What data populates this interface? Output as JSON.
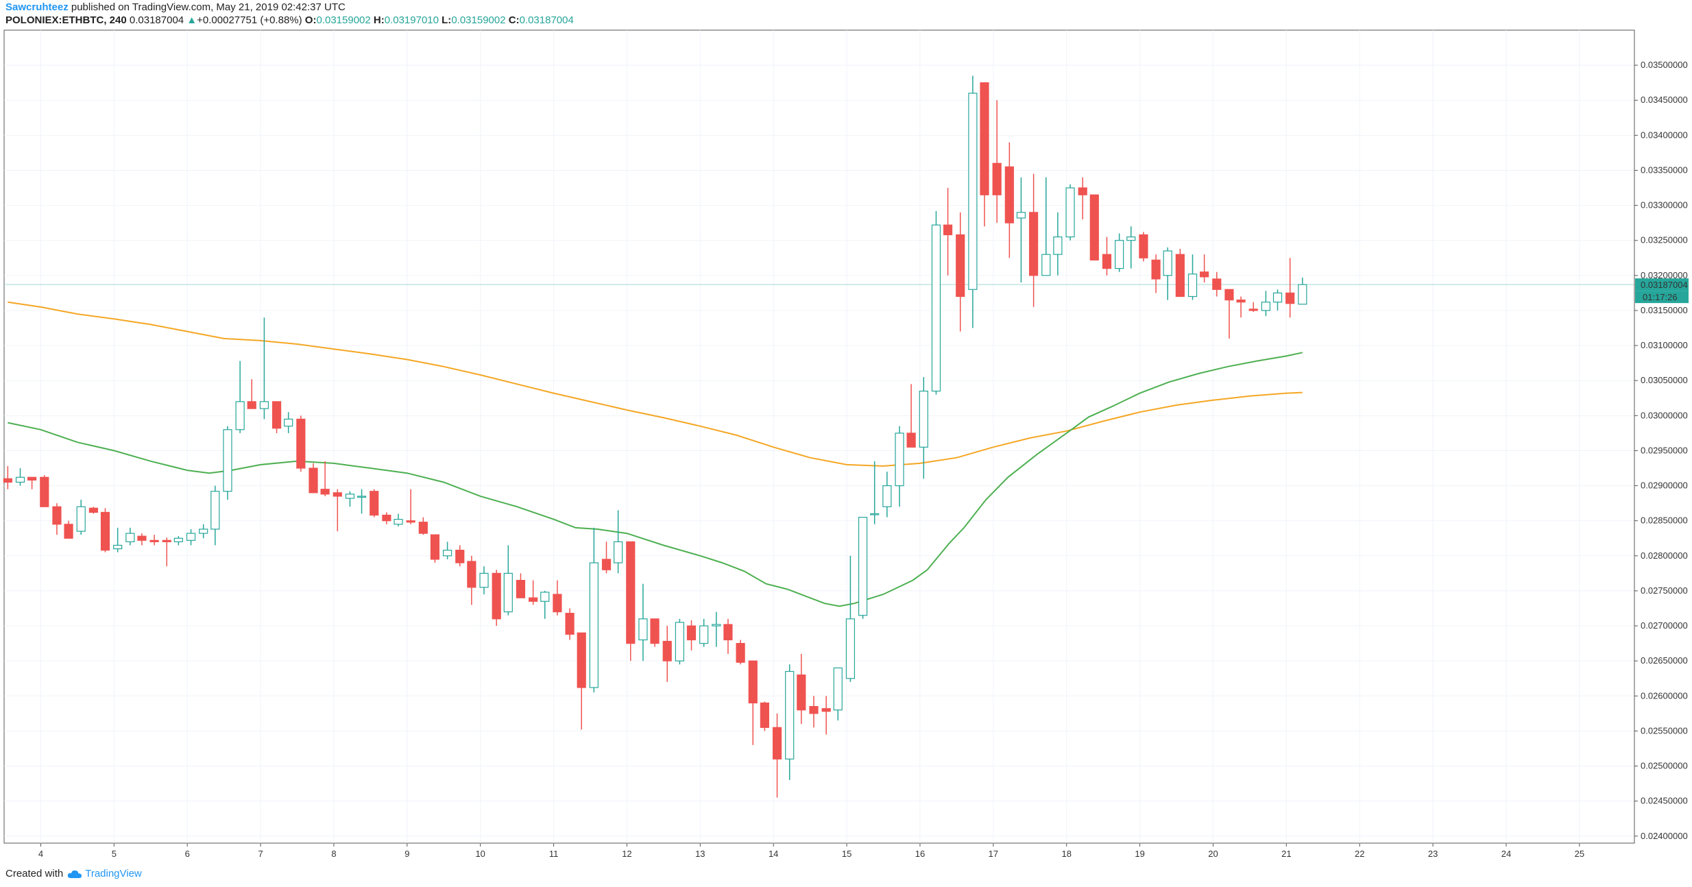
{
  "header": {
    "author": "Sawcruhteez",
    "published": "published on TradingView.com, May 21, 2019 02:42:37 UTC",
    "symbol": "POLONIEX:ETHBTC, 240",
    "last": "0.03187004",
    "change_arrow": "▲",
    "change": "+0.00027751 (+0.88%)",
    "o_label": "O:",
    "o": "0.03159002",
    "h_label": "H:",
    "h": "0.03197010",
    "l_label": "L:",
    "l": "0.03159002",
    "c_label": "C:",
    "c": "0.03187004"
  },
  "footer": {
    "created_with": "Created with",
    "brand": "TradingView"
  },
  "price_tag": {
    "price": "0.03187004",
    "countdown": "01:17:26"
  },
  "colors": {
    "up": "#26a69a",
    "down": "#ef5350",
    "ma_slow": "#f5a623",
    "ma_fast": "#4caf50",
    "grid": "#f0f3fa",
    "axis": "#555555",
    "tag": "#26a69a"
  },
  "chart_data": {
    "type": "candlestick",
    "symbol": "POLONIEX:ETHBTC",
    "interval": "240",
    "ylim": [
      0.0239,
      0.0355
    ],
    "y_ticks": [
      "0.02400000",
      "0.02450000",
      "0.02500000",
      "0.02550000",
      "0.02600000",
      "0.02650000",
      "0.02700000",
      "0.02750000",
      "0.02800000",
      "0.02850000",
      "0.02900000",
      "0.02950000",
      "0.03000000",
      "0.03050000",
      "0.03100000",
      "0.03150000",
      "0.03200000",
      "0.03250000",
      "0.03300000",
      "0.03350000",
      "0.03400000",
      "0.03450000",
      "0.03500000"
    ],
    "x_ticks": [
      "4",
      "5",
      "6",
      "7",
      "8",
      "9",
      "10",
      "11",
      "12",
      "13",
      "14",
      "15",
      "16",
      "17",
      "18",
      "19",
      "20",
      "21",
      "22",
      "23",
      "24",
      "25"
    ],
    "x_start_day": 3.5,
    "x_end_day": 25.75,
    "candles": [
      [
        3.55,
        0.0291,
        0.02928,
        0.02895,
        0.02905
      ],
      [
        3.72,
        0.02905,
        0.02925,
        0.029,
        0.02912
      ],
      [
        3.88,
        0.02912,
        0.02912,
        0.02895,
        0.02908
      ],
      [
        4.05,
        0.02912,
        0.02915,
        0.0287,
        0.0287
      ],
      [
        4.22,
        0.0287,
        0.02875,
        0.0283,
        0.02845
      ],
      [
        4.38,
        0.02845,
        0.0285,
        0.02825,
        0.02825
      ],
      [
        4.55,
        0.02835,
        0.0288,
        0.0283,
        0.0287
      ],
      [
        4.72,
        0.02868,
        0.0287,
        0.0286,
        0.02862
      ],
      [
        4.88,
        0.02862,
        0.02868,
        0.02805,
        0.02808
      ],
      [
        5.05,
        0.0281,
        0.0284,
        0.02805,
        0.02815
      ],
      [
        5.22,
        0.0282,
        0.0284,
        0.02815,
        0.02832
      ],
      [
        5.38,
        0.02828,
        0.02832,
        0.02815,
        0.02822
      ],
      [
        5.55,
        0.02822,
        0.0283,
        0.02815,
        0.0282
      ],
      [
        5.72,
        0.02822,
        0.02826,
        0.02785,
        0.0282
      ],
      [
        5.88,
        0.0282,
        0.02828,
        0.02815,
        0.02825
      ],
      [
        6.05,
        0.02822,
        0.02838,
        0.02815,
        0.02832
      ],
      [
        6.22,
        0.02832,
        0.02845,
        0.02825,
        0.02838
      ],
      [
        6.38,
        0.02838,
        0.029,
        0.02815,
        0.02892
      ],
      [
        6.55,
        0.02892,
        0.02985,
        0.0288,
        0.0298
      ],
      [
        6.72,
        0.0298,
        0.03078,
        0.02975,
        0.0302
      ],
      [
        6.88,
        0.0302,
        0.03052,
        0.0301,
        0.0301
      ],
      [
        7.05,
        0.0301,
        0.0314,
        0.02995,
        0.0302
      ],
      [
        7.22,
        0.0302,
        0.0302,
        0.02975,
        0.02982
      ],
      [
        7.38,
        0.02985,
        0.03005,
        0.02975,
        0.02995
      ],
      [
        7.55,
        0.02995,
        0.03,
        0.0292,
        0.02925
      ],
      [
        7.72,
        0.02925,
        0.02932,
        0.0289,
        0.0289
      ],
      [
        7.88,
        0.02895,
        0.02935,
        0.02885,
        0.02888
      ],
      [
        8.05,
        0.0289,
        0.02895,
        0.02835,
        0.02885
      ],
      [
        8.22,
        0.02882,
        0.02892,
        0.0287,
        0.02888
      ],
      [
        8.38,
        0.02885,
        0.02895,
        0.0286,
        0.02885
      ],
      [
        8.55,
        0.02892,
        0.02895,
        0.02855,
        0.02858
      ],
      [
        8.72,
        0.02858,
        0.02862,
        0.02845,
        0.0285
      ],
      [
        8.88,
        0.02845,
        0.0286,
        0.02842,
        0.02852
      ],
      [
        9.05,
        0.0285,
        0.02895,
        0.02845,
        0.02848
      ],
      [
        9.22,
        0.02848,
        0.02855,
        0.0283,
        0.02832
      ],
      [
        9.38,
        0.0283,
        0.0283,
        0.0279,
        0.02795
      ],
      [
        9.55,
        0.028,
        0.0282,
        0.02795,
        0.02808
      ],
      [
        9.72,
        0.02808,
        0.02815,
        0.02785,
        0.0279
      ],
      [
        9.88,
        0.02792,
        0.028,
        0.0273,
        0.02755
      ],
      [
        10.05,
        0.02755,
        0.02785,
        0.02745,
        0.02775
      ],
      [
        10.22,
        0.02775,
        0.0278,
        0.027,
        0.0271
      ],
      [
        10.38,
        0.0272,
        0.02815,
        0.02715,
        0.02775
      ],
      [
        10.55,
        0.02765,
        0.02775,
        0.0274,
        0.0274
      ],
      [
        10.72,
        0.0274,
        0.02765,
        0.0273,
        0.02735
      ],
      [
        10.88,
        0.02735,
        0.0275,
        0.0271,
        0.02748
      ],
      [
        11.05,
        0.02745,
        0.02765,
        0.02715,
        0.0272
      ],
      [
        11.22,
        0.02718,
        0.02725,
        0.0268,
        0.02688
      ],
      [
        11.38,
        0.0269,
        0.0269,
        0.02552,
        0.02612
      ],
      [
        11.55,
        0.02612,
        0.0284,
        0.02605,
        0.0279
      ],
      [
        11.72,
        0.02795,
        0.0282,
        0.02775,
        0.0278
      ],
      [
        11.88,
        0.0279,
        0.02865,
        0.02775,
        0.0282
      ],
      [
        12.05,
        0.0282,
        0.0282,
        0.0265,
        0.02675
      ],
      [
        12.22,
        0.0268,
        0.0276,
        0.0265,
        0.0271
      ],
      [
        12.38,
        0.0271,
        0.0271,
        0.0267,
        0.02675
      ],
      [
        12.55,
        0.02678,
        0.027,
        0.0262,
        0.0265
      ],
      [
        12.72,
        0.0265,
        0.0271,
        0.02645,
        0.02705
      ],
      [
        12.88,
        0.027,
        0.02708,
        0.02665,
        0.0268
      ],
      [
        13.05,
        0.02675,
        0.0271,
        0.0267,
        0.027
      ],
      [
        13.22,
        0.027,
        0.0272,
        0.0267,
        0.02702
      ],
      [
        13.38,
        0.02702,
        0.0271,
        0.0266,
        0.0268
      ],
      [
        13.55,
        0.02675,
        0.0268,
        0.02645,
        0.02648
      ],
      [
        13.72,
        0.0265,
        0.0265,
        0.0253,
        0.0259
      ],
      [
        13.88,
        0.0259,
        0.02592,
        0.0255,
        0.02555
      ],
      [
        14.05,
        0.02555,
        0.02575,
        0.02455,
        0.0251
      ],
      [
        14.22,
        0.0251,
        0.02645,
        0.0248,
        0.02635
      ],
      [
        14.38,
        0.0263,
        0.0266,
        0.0256,
        0.0258
      ],
      [
        14.55,
        0.02585,
        0.026,
        0.02555,
        0.02575
      ],
      [
        14.72,
        0.02582,
        0.026,
        0.02545,
        0.02578
      ],
      [
        14.88,
        0.0258,
        0.0264,
        0.02565,
        0.0264
      ],
      [
        15.05,
        0.02625,
        0.028,
        0.0262,
        0.0271
      ],
      [
        15.22,
        0.02715,
        0.02855,
        0.0271,
        0.02855
      ],
      [
        15.38,
        0.0286,
        0.02935,
        0.02845,
        0.0286
      ],
      [
        15.55,
        0.0287,
        0.0292,
        0.02855,
        0.029
      ],
      [
        15.72,
        0.029,
        0.02985,
        0.0287,
        0.02975
      ],
      [
        15.88,
        0.02975,
        0.03045,
        0.02955,
        0.02955
      ],
      [
        16.05,
        0.02955,
        0.03055,
        0.0291,
        0.03035
      ],
      [
        16.22,
        0.03035,
        0.03292,
        0.0303,
        0.03272
      ],
      [
        16.38,
        0.03272,
        0.03325,
        0.032,
        0.03258
      ],
      [
        16.55,
        0.03258,
        0.0329,
        0.0312,
        0.0317
      ],
      [
        16.72,
        0.0318,
        0.03485,
        0.03125,
        0.0346
      ],
      [
        16.88,
        0.03475,
        0.03475,
        0.0327,
        0.03315
      ],
      [
        17.05,
        0.0336,
        0.0345,
        0.03275,
        0.03315
      ],
      [
        17.22,
        0.03355,
        0.0339,
        0.03225,
        0.03275
      ],
      [
        17.38,
        0.03282,
        0.0334,
        0.0319,
        0.0329
      ],
      [
        17.55,
        0.0329,
        0.03345,
        0.03155,
        0.032
      ],
      [
        17.72,
        0.032,
        0.0334,
        0.032,
        0.0323
      ],
      [
        17.88,
        0.0323,
        0.0329,
        0.032,
        0.03255
      ],
      [
        18.05,
        0.03255,
        0.0333,
        0.0325,
        0.03325
      ],
      [
        18.22,
        0.03325,
        0.0334,
        0.0328,
        0.03315
      ],
      [
        18.38,
        0.03315,
        0.03315,
        0.03222,
        0.03222
      ],
      [
        18.55,
        0.0323,
        0.03255,
        0.032,
        0.0321
      ],
      [
        18.72,
        0.0321,
        0.0326,
        0.03205,
        0.0325
      ],
      [
        18.88,
        0.0325,
        0.0327,
        0.0321,
        0.03255
      ],
      [
        19.05,
        0.03258,
        0.03262,
        0.0322,
        0.03225
      ],
      [
        19.22,
        0.03222,
        0.0323,
        0.03175,
        0.03195
      ],
      [
        19.38,
        0.032,
        0.0324,
        0.03165,
        0.03235
      ],
      [
        19.55,
        0.0323,
        0.03238,
        0.0317,
        0.0317
      ],
      [
        19.72,
        0.0317,
        0.0323,
        0.03165,
        0.03202
      ],
      [
        19.88,
        0.03205,
        0.0323,
        0.0319,
        0.03198
      ],
      [
        20.05,
        0.03195,
        0.03205,
        0.0317,
        0.0318
      ],
      [
        20.22,
        0.0318,
        0.0318,
        0.0311,
        0.03165
      ],
      [
        20.38,
        0.03165,
        0.0317,
        0.0314,
        0.03162
      ],
      [
        20.55,
        0.03152,
        0.03162,
        0.03148,
        0.0315
      ],
      [
        20.72,
        0.0315,
        0.03178,
        0.03142,
        0.03162
      ],
      [
        20.88,
        0.03162,
        0.0318,
        0.0315,
        0.03175
      ],
      [
        21.05,
        0.03175,
        0.03225,
        0.0314,
        0.0316
      ],
      [
        21.22,
        0.03159002,
        0.0319701,
        0.03159002,
        0.03187004
      ]
    ],
    "ma_fast": {
      "color": "#4caf50",
      "points": [
        [
          3.55,
          0.0299
        ],
        [
          4.0,
          0.0298
        ],
        [
          4.5,
          0.02962
        ],
        [
          5.0,
          0.0295
        ],
        [
          5.5,
          0.02935
        ],
        [
          6.0,
          0.02922
        ],
        [
          6.3,
          0.02918
        ],
        [
          6.6,
          0.02922
        ],
        [
          7.0,
          0.0293
        ],
        [
          7.5,
          0.02935
        ],
        [
          8.0,
          0.02932
        ],
        [
          8.5,
          0.02925
        ],
        [
          9.0,
          0.02918
        ],
        [
          9.5,
          0.02905
        ],
        [
          10.0,
          0.02885
        ],
        [
          10.5,
          0.0287
        ],
        [
          11.0,
          0.02852
        ],
        [
          11.3,
          0.0284
        ],
        [
          11.6,
          0.02838
        ],
        [
          12.0,
          0.02832
        ],
        [
          12.5,
          0.02815
        ],
        [
          13.0,
          0.028
        ],
        [
          13.3,
          0.0279
        ],
        [
          13.6,
          0.02778
        ],
        [
          13.9,
          0.0276
        ],
        [
          14.2,
          0.02752
        ],
        [
          14.5,
          0.0274
        ],
        [
          14.7,
          0.02732
        ],
        [
          14.9,
          0.02728
        ],
        [
          15.1,
          0.02732
        ],
        [
          15.5,
          0.02745
        ],
        [
          15.9,
          0.02765
        ],
        [
          16.1,
          0.0278
        ],
        [
          16.4,
          0.02818
        ],
        [
          16.6,
          0.0284
        ],
        [
          16.9,
          0.0288
        ],
        [
          17.2,
          0.02912
        ],
        [
          17.6,
          0.02945
        ],
        [
          18.0,
          0.02975
        ],
        [
          18.3,
          0.02998
        ],
        [
          18.6,
          0.03012
        ],
        [
          19.0,
          0.03032
        ],
        [
          19.4,
          0.03048
        ],
        [
          19.8,
          0.0306
        ],
        [
          20.2,
          0.0307
        ],
        [
          20.6,
          0.03078
        ],
        [
          21.0,
          0.03085
        ],
        [
          21.22,
          0.0309
        ]
      ]
    },
    "ma_slow": {
      "color": "#f5a623",
      "points": [
        [
          3.55,
          0.03162
        ],
        [
          4.0,
          0.03155
        ],
        [
          4.5,
          0.03145
        ],
        [
          5.0,
          0.03138
        ],
        [
          5.5,
          0.0313
        ],
        [
          6.0,
          0.0312
        ],
        [
          6.5,
          0.0311
        ],
        [
          7.0,
          0.03107
        ],
        [
          7.5,
          0.03102
        ],
        [
          8.0,
          0.03095
        ],
        [
          8.5,
          0.03088
        ],
        [
          9.0,
          0.0308
        ],
        [
          9.5,
          0.0307
        ],
        [
          10.0,
          0.03058
        ],
        [
          10.5,
          0.03045
        ],
        [
          11.0,
          0.03032
        ],
        [
          11.5,
          0.0302
        ],
        [
          12.0,
          0.03008
        ],
        [
          12.5,
          0.02997
        ],
        [
          13.0,
          0.02985
        ],
        [
          13.5,
          0.02972
        ],
        [
          14.0,
          0.02955
        ],
        [
          14.5,
          0.0294
        ],
        [
          15.0,
          0.0293
        ],
        [
          15.5,
          0.02928
        ],
        [
          16.0,
          0.02932
        ],
        [
          16.5,
          0.0294
        ],
        [
          17.0,
          0.02955
        ],
        [
          17.5,
          0.02968
        ],
        [
          18.0,
          0.02978
        ],
        [
          18.5,
          0.02992
        ],
        [
          19.0,
          0.03005
        ],
        [
          19.5,
          0.03015
        ],
        [
          20.0,
          0.03022
        ],
        [
          20.5,
          0.03028
        ],
        [
          21.0,
          0.03032
        ],
        [
          21.22,
          0.03033
        ]
      ]
    }
  }
}
